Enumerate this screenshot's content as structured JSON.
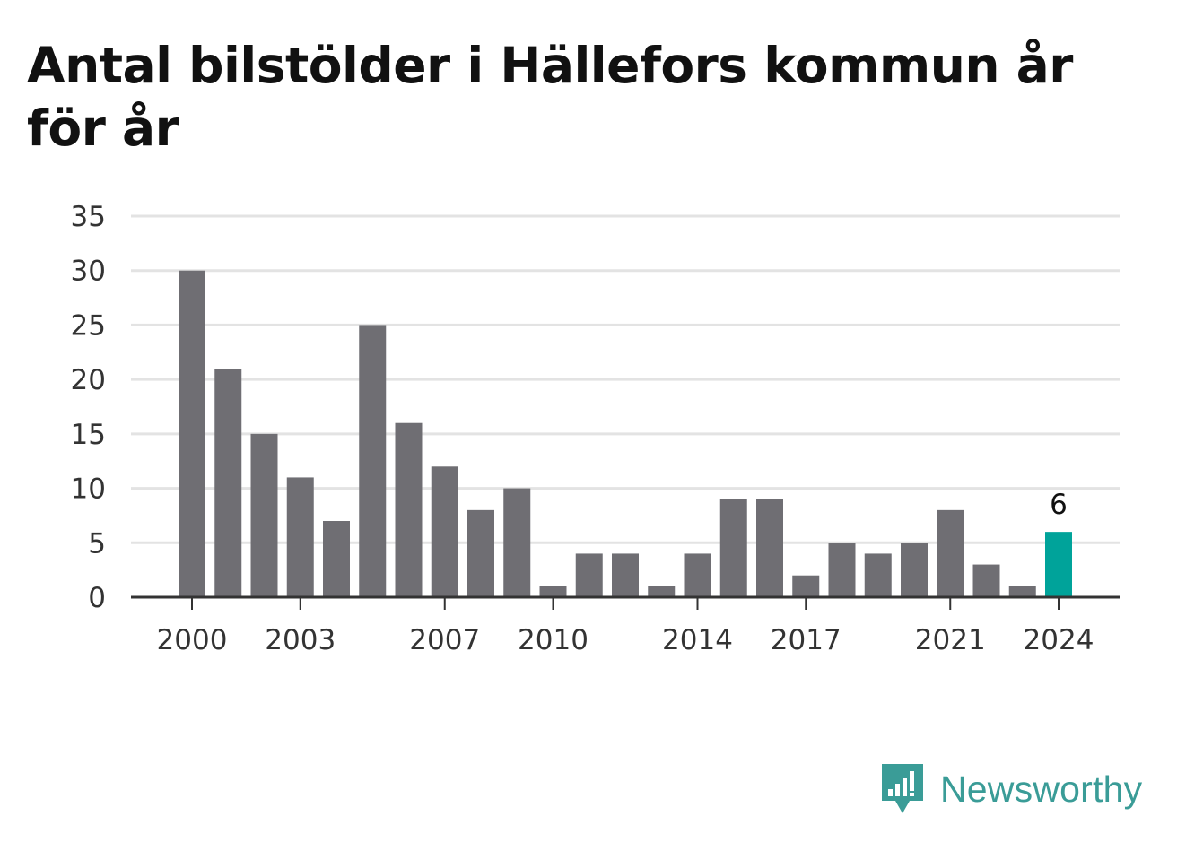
{
  "chart_data": {
    "type": "bar",
    "title": "Antal bilstölder i Hällefors kommun år för år",
    "x": [
      2000,
      2001,
      2002,
      2003,
      2004,
      2005,
      2006,
      2007,
      2008,
      2009,
      2010,
      2011,
      2012,
      2013,
      2014,
      2015,
      2016,
      2017,
      2018,
      2019,
      2020,
      2021,
      2022,
      2023,
      2024
    ],
    "values": [
      30,
      21,
      15,
      11,
      7,
      25,
      16,
      12,
      8,
      10,
      1,
      4,
      4,
      1,
      4,
      9,
      9,
      2,
      5,
      4,
      5,
      8,
      3,
      1,
      6
    ],
    "x_tick_labels": [
      "2000",
      "2003",
      "2007",
      "2010",
      "2014",
      "2017",
      "2021",
      "2024"
    ],
    "y_ticks": [
      0,
      5,
      10,
      15,
      20,
      25,
      30,
      35
    ],
    "ylim": [
      0,
      35
    ],
    "xlabel": "",
    "ylabel": "",
    "grid": true,
    "highlight": {
      "year": 2024,
      "label": "6"
    },
    "colors": {
      "bar": "#6f6e73",
      "highlight": "#00a39a",
      "grid": "#e3e3e3",
      "axis": "#333333"
    }
  },
  "brand": {
    "name": "Newsworthy",
    "icon": "newsworthy-logo-icon",
    "color": "#3a9c97"
  }
}
